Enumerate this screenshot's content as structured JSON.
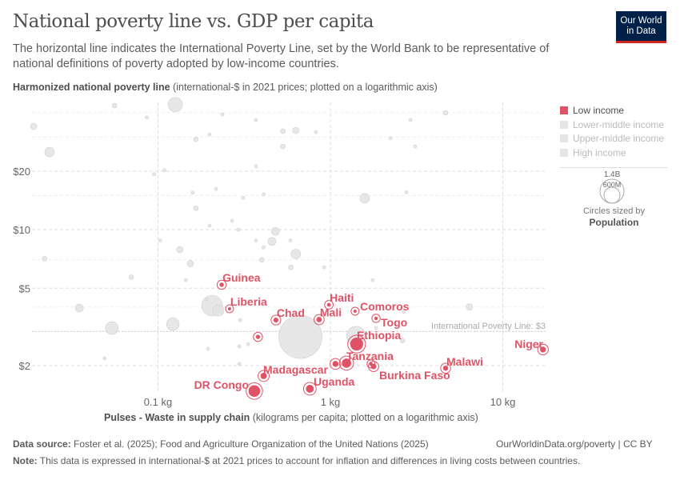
{
  "header": {
    "title": "National poverty line vs. GDP per capita",
    "subtitle": "The horizontal line indicates the International Poverty Line, set by the World Bank to be representative of national definitions of poverty adopted by low-income countries.",
    "logo_line1": "Our World",
    "logo_line2": "in Data"
  },
  "chart_data": {
    "type": "scatter",
    "title": "National poverty line vs. GDP per capita",
    "ylabel_bold": "Harmonized national poverty line",
    "ylabel_rest": " (international-$ in 2021 prices; plotted on a logarithmic axis)",
    "xlabel_bold": "Pulses - Waste in supply chain",
    "xlabel_rest": " (kilograms per capita; plotted on a logarithmic axis)",
    "x_scale": "log",
    "y_scale": "log",
    "xlim": [
      0.017,
      18
    ],
    "ylim": [
      1.4,
      48
    ],
    "x_ticks": [
      {
        "v": 0.1,
        "label": "0.1 kg"
      },
      {
        "v": 1,
        "label": "1 kg"
      },
      {
        "v": 10,
        "label": "10 kg"
      }
    ],
    "y_ticks": [
      {
        "v": 2,
        "label": "$2"
      },
      {
        "v": 5,
        "label": "$5"
      },
      {
        "v": 10,
        "label": "$10"
      },
      {
        "v": 20,
        "label": "$20"
      }
    ],
    "grid": true,
    "reference_line": {
      "y": 3,
      "label": "International Poverty Line: $3"
    },
    "legend_placement": "right",
    "legend": [
      {
        "label": "Low income",
        "color": "#e05266",
        "active": true
      },
      {
        "label": "Lower-middle income",
        "color": "#e5e5e5",
        "active": false
      },
      {
        "label": "Upper-middle income",
        "color": "#e5e5e5",
        "active": false
      },
      {
        "label": "High income",
        "color": "#e5e5e5",
        "active": false
      }
    ],
    "size_legend": {
      "large": "1.4B",
      "small": "600M",
      "caption": "Circles sized by",
      "variable": "Population"
    },
    "colors": {
      "low_income": "#e05266",
      "other": "#e0e0e0",
      "reference": "#bbbbbb"
    },
    "low_income": [
      {
        "name": "Guinea",
        "x": 0.234,
        "y": 5.21,
        "pop": 14
      },
      {
        "name": "Liberia",
        "x": 0.26,
        "y": 3.92,
        "pop": 5
      },
      {
        "name": "Chad",
        "x": 0.483,
        "y": 3.43,
        "pop": 18
      },
      {
        "name": "Mali",
        "x": 0.86,
        "y": 3.45,
        "pop": 22
      },
      {
        "name": "Haiti",
        "x": 0.98,
        "y": 4.11,
        "pop": 11
      },
      {
        "name": "Comoros",
        "x": 1.39,
        "y": 3.81,
        "pop": 1
      },
      {
        "name": "Togo",
        "x": 1.84,
        "y": 3.5,
        "pop": 9
      },
      {
        "name": "Burkina Faso",
        "x": 1.78,
        "y": 1.98,
        "pop": 23
      },
      {
        "name": "Ethiopia",
        "x": 1.42,
        "y": 2.58,
        "pop": 126
      },
      {
        "name": "Tanzania",
        "x": 1.24,
        "y": 2.06,
        "pop": 65
      },
      {
        "name": "Malawi",
        "x": 4.66,
        "y": 1.94,
        "pop": 20
      },
      {
        "name": "Niger",
        "x": 17.1,
        "y": 2.42,
        "pop": 26
      },
      {
        "name": "Madagascar",
        "x": 0.41,
        "y": 1.77,
        "pop": 30
      },
      {
        "name": "DR Congo",
        "x": 0.362,
        "y": 1.48,
        "pop": 102
      },
      {
        "name": "Uganda",
        "x": 0.76,
        "y": 1.52,
        "pop": 47
      },
      {
        "name": "",
        "x": 0.38,
        "y": 2.81,
        "pop": 14
      },
      {
        "name": "",
        "x": 1.07,
        "y": 2.04,
        "pop": 27
      },
      {
        "name": "",
        "x": 1.72,
        "y": 2.04,
        "pop": 8
      }
    ],
    "other": [
      {
        "x": 0.019,
        "y": 34,
        "pop": 31
      },
      {
        "x": 0.0235,
        "y": 25.1,
        "pop": 69
      },
      {
        "x": 0.056,
        "y": 43.5,
        "pop": 17
      },
      {
        "x": 0.126,
        "y": 44,
        "pop": 156
      },
      {
        "x": 0.086,
        "y": 37.8,
        "pop": 8
      },
      {
        "x": 0.166,
        "y": 29.2,
        "pop": 17
      },
      {
        "x": 0.199,
        "y": 30.9,
        "pop": 8
      },
      {
        "x": 0.236,
        "y": 39.2,
        "pop": 8
      },
      {
        "x": 0.37,
        "y": 36.7,
        "pop": 8
      },
      {
        "x": 0.53,
        "y": 32.1,
        "pop": 17
      },
      {
        "x": 0.53,
        "y": 26.8,
        "pop": 17
      },
      {
        "x": 0.63,
        "y": 32.4,
        "pop": 31
      },
      {
        "x": 0.825,
        "y": 31.8,
        "pop": 8
      },
      {
        "x": 2.23,
        "y": 29.5,
        "pop": 8
      },
      {
        "x": 2.91,
        "y": 36.7,
        "pop": 8
      },
      {
        "x": 4.66,
        "y": 39.9,
        "pop": 17
      },
      {
        "x": 3.1,
        "y": 26.8,
        "pop": 8
      },
      {
        "x": 1.58,
        "y": 14.5,
        "pop": 69
      },
      {
        "x": 2.76,
        "y": 15.6,
        "pop": 8
      },
      {
        "x": 0.37,
        "y": 21.2,
        "pop": 8
      },
      {
        "x": 0.095,
        "y": 19.3,
        "pop": 8
      },
      {
        "x": 0.109,
        "y": 20.2,
        "pop": 8
      },
      {
        "x": 0.217,
        "y": 16.2,
        "pop": 8
      },
      {
        "x": 0.166,
        "y": 12.9,
        "pop": 17
      },
      {
        "x": 0.159,
        "y": 15.5,
        "pop": 8
      },
      {
        "x": 0.41,
        "y": 15.2,
        "pop": 8
      },
      {
        "x": 0.312,
        "y": 14.6,
        "pop": 8
      },
      {
        "x": 0.269,
        "y": 11.1,
        "pop": 8
      },
      {
        "x": 0.199,
        "y": 10.5,
        "pop": 8
      },
      {
        "x": 0.48,
        "y": 9.8,
        "pop": 48
      },
      {
        "x": 0.292,
        "y": 10,
        "pop": 8
      },
      {
        "x": 0.37,
        "y": 8.8,
        "pop": 8
      },
      {
        "x": 0.458,
        "y": 8.7,
        "pop": 48
      },
      {
        "x": 0.586,
        "y": 8.8,
        "pop": 8
      },
      {
        "x": 0.41,
        "y": 8.1,
        "pop": 8
      },
      {
        "x": 0.134,
        "y": 7.9,
        "pop": 31
      },
      {
        "x": 0.63,
        "y": 7.5,
        "pop": 69
      },
      {
        "x": 0.154,
        "y": 6.7,
        "pop": 31
      },
      {
        "x": 0.103,
        "y": 8.8,
        "pop": 8
      },
      {
        "x": 0.022,
        "y": 7.1,
        "pop": 17
      },
      {
        "x": 0.4,
        "y": 7.0,
        "pop": 17
      },
      {
        "x": 0.145,
        "y": 5.5,
        "pop": 8
      },
      {
        "x": 0.07,
        "y": 5.7,
        "pop": 17
      },
      {
        "x": 0.59,
        "y": 6.4,
        "pop": 17
      },
      {
        "x": 0.92,
        "y": 6.4,
        "pop": 8
      },
      {
        "x": 0.206,
        "y": 4.07,
        "pop": 325
      },
      {
        "x": 0.224,
        "y": 3.84,
        "pop": 94
      },
      {
        "x": 0.191,
        "y": 4.4,
        "pop": 8
      },
      {
        "x": 0.122,
        "y": 3.27,
        "pop": 123
      },
      {
        "x": 0.054,
        "y": 3.12,
        "pop": 123
      },
      {
        "x": 0.035,
        "y": 3.95,
        "pop": 48
      },
      {
        "x": 6.4,
        "y": 4.0,
        "pop": 31
      },
      {
        "x": 0.3,
        "y": 3.43,
        "pop": 8
      },
      {
        "x": 0.67,
        "y": 2.81,
        "pop": 1400
      },
      {
        "x": 1.41,
        "y": 2.84,
        "pop": 277
      },
      {
        "x": 2.62,
        "y": 2.69,
        "pop": 17
      },
      {
        "x": 0.049,
        "y": 2.18,
        "pop": 8
      },
      {
        "x": 0.195,
        "y": 2.44,
        "pop": 8
      },
      {
        "x": 0.296,
        "y": 2.51,
        "pop": 8
      },
      {
        "x": 0.333,
        "y": 2.58,
        "pop": 8
      },
      {
        "x": 2.67,
        "y": 3.78,
        "pop": 8
      },
      {
        "x": 1.76,
        "y": 5.5,
        "pop": 8
      },
      {
        "x": 1.84,
        "y": 3.12,
        "pop": 8
      },
      {
        "x": 0.296,
        "y": 2.04,
        "pop": 8
      }
    ]
  },
  "footer": {
    "source_label": "Data source:",
    "source": " Foster et al. (2025); Food and Agriculture Organization of the United Nations (2025)",
    "note_label": "Note:",
    "note": " This data is expressed in international-$ at 2021 prices to account for inflation and differences in living costs between countries.",
    "credit": "OurWorldinData.org/poverty | CC BY"
  }
}
